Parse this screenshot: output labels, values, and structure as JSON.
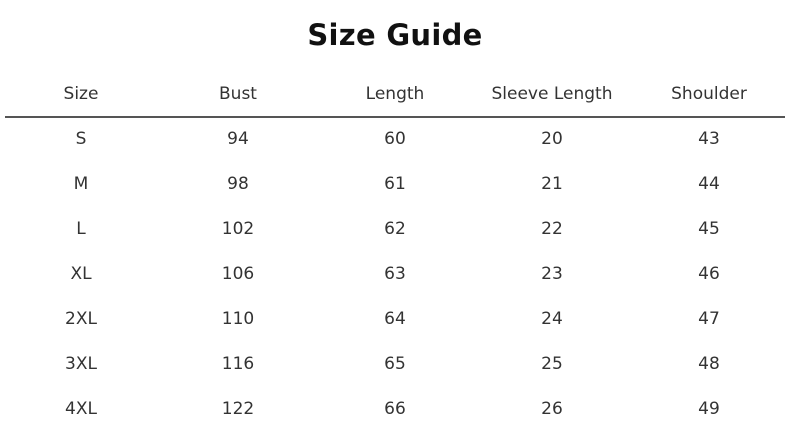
{
  "title": "Size Guide",
  "headers": [
    "Size",
    "Bust",
    "Length",
    "Sleeve Length",
    "Shoulder"
  ],
  "rows": [
    [
      "S",
      "94",
      "60",
      "20",
      "43"
    ],
    [
      "M",
      "98",
      "61",
      "21",
      "44"
    ],
    [
      "L",
      "102",
      "62",
      "22",
      "45"
    ],
    [
      "XL",
      "106",
      "63",
      "23",
      "46"
    ],
    [
      "2XL",
      "110",
      "64",
      "24",
      "47"
    ],
    [
      "3XL",
      "116",
      "65",
      "25",
      "48"
    ],
    [
      "4XL",
      "122",
      "66",
      "26",
      "49"
    ]
  ]
}
